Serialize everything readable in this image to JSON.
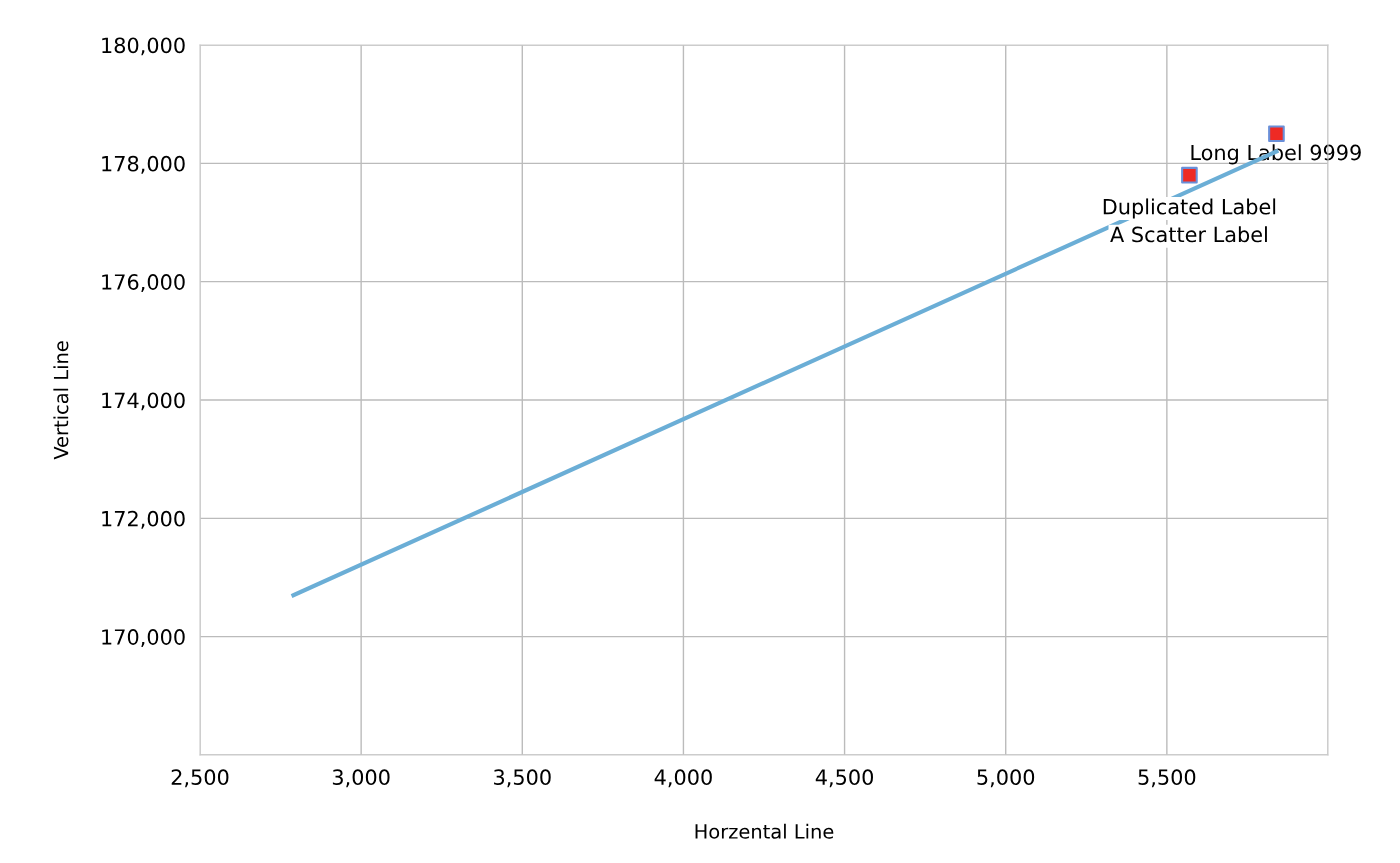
{
  "chart_data": {
    "type": "scatter",
    "xlabel": "Horzental Line",
    "ylabel": "Vertical Line",
    "series": [
      {
        "type": "line",
        "color": "#6baed6",
        "x": [
          2790,
          5840
        ],
        "values": [
          170700,
          178200
        ],
        "marker": "none"
      },
      {
        "type": "scatter",
        "color": "#ee2a24",
        "x": [
          5570,
          5840
        ],
        "values": [
          177800,
          178500
        ],
        "marker": "square"
      }
    ],
    "annotations": [
      "Long Label 9999",
      "Duplicated Label",
      "A Scatter Label"
    ],
    "xlim": [
      2500,
      6000
    ],
    "xticks": [
      {
        "value": 2500,
        "label": "2,500"
      },
      {
        "value": 3000,
        "label": "3,000"
      },
      {
        "value": 3500,
        "label": "3,500"
      },
      {
        "value": 4000,
        "label": "4,000"
      },
      {
        "value": 4500,
        "label": "4,500"
      },
      {
        "value": 5000,
        "label": "5,000"
      },
      {
        "value": 5500,
        "label": "5,500"
      },
      {
        "value": 6000,
        "label": null
      }
    ],
    "ylim": [
      168000,
      180000
    ],
    "yticks": [
      {
        "value": 168000,
        "label": null
      },
      {
        "value": 170000,
        "label": "170,000"
      },
      {
        "value": 172000,
        "label": "172,000"
      },
      {
        "value": 174000,
        "label": "174,000"
      },
      {
        "value": 176000,
        "label": "176,000"
      },
      {
        "value": 178000,
        "label": "178,000"
      },
      {
        "value": 180000,
        "label": "180,000"
      }
    ],
    "grid": true,
    "legend": false
  }
}
